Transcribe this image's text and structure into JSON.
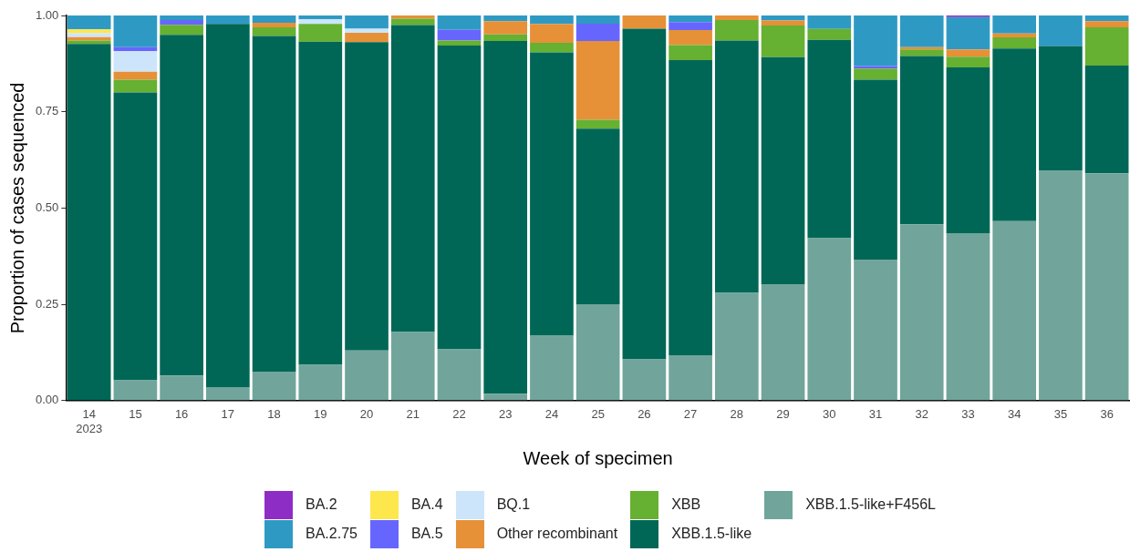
{
  "chart_data": {
    "type": "bar",
    "stacked": true,
    "xlabel": "Week of specimen",
    "ylabel": "Proportion of cases sequenced",
    "categories": [
      "14\n2023",
      "15",
      "16",
      "17",
      "18",
      "19",
      "20",
      "21",
      "22",
      "23",
      "24",
      "25",
      "26",
      "27",
      "28",
      "29",
      "30",
      "31",
      "32",
      "33",
      "34",
      "35",
      "36"
    ],
    "ylim": [
      0,
      1
    ],
    "yticks": [
      {
        "value": 0,
        "label": "0.00"
      },
      {
        "value": 0.25,
        "label": "0.25"
      },
      {
        "value": 0.5,
        "label": "0.50"
      },
      {
        "value": 0.75,
        "label": "0.75"
      },
      {
        "value": 1,
        "label": "1.00"
      }
    ],
    "grid": false,
    "legend": "bottom",
    "series": [
      {
        "name": "XBB.1.5-like+F456L",
        "color": "#71a59b",
        "values": [
          0,
          0.053,
          0.065,
          0.035,
          0.075,
          0.093,
          0.13,
          0.178,
          0.133,
          0.018,
          0.17,
          0.25,
          0.107,
          0.118,
          0.28,
          0.302,
          0.422,
          0.366,
          0.458,
          0.435,
          0.466,
          0.598,
          0.59
        ]
      },
      {
        "name": "XBB.1.5-like",
        "color": "#006756",
        "values": [
          0.926,
          0.747,
          0.885,
          0.943,
          0.872,
          0.839,
          0.801,
          0.797,
          0.789,
          0.916,
          0.734,
          0.456,
          0.859,
          0.766,
          0.655,
          0.59,
          0.515,
          0.467,
          0.437,
          0.43,
          0.448,
          0.323,
          0.28
        ]
      },
      {
        "name": "XBB",
        "color": "#66b032",
        "values": [
          0.009,
          0.033,
          0.026,
          0,
          0.022,
          0.046,
          0,
          0.017,
          0.013,
          0.017,
          0.025,
          0.023,
          0,
          0.039,
          0.053,
          0.082,
          0.028,
          0.029,
          0.017,
          0.028,
          0.029,
          0,
          0.099
        ]
      },
      {
        "name": "Other recombinant",
        "color": "#e69138",
        "values": [
          0.009,
          0.021,
          0,
          0,
          0.012,
          0,
          0.024,
          0.008,
          0,
          0.034,
          0.049,
          0.205,
          0.034,
          0.039,
          0.012,
          0.013,
          0,
          0,
          0.006,
          0.019,
          0.01,
          0,
          0.016
        ]
      },
      {
        "name": "BQ.1",
        "color": "#cce5fa",
        "values": [
          0.01,
          0.053,
          0,
          0,
          0,
          0.012,
          0.011,
          0,
          0,
          0,
          0,
          0,
          0,
          0,
          0,
          0,
          0,
          0,
          0,
          0,
          0,
          0,
          0
        ]
      },
      {
        "name": "BA.5",
        "color": "#6666ff",
        "values": [
          0,
          0.011,
          0.012,
          0,
          0,
          0,
          0,
          0,
          0.028,
          0,
          0,
          0.045,
          0,
          0.021,
          0,
          0,
          0,
          0.007,
          0,
          0,
          0,
          0,
          0
        ]
      },
      {
        "name": "BA.4",
        "color": "#fde74c",
        "values": [
          0.01,
          0,
          0,
          0,
          0,
          0,
          0,
          0,
          0,
          0,
          0,
          0,
          0,
          0,
          0,
          0,
          0,
          0,
          0,
          0,
          0,
          0,
          0
        ]
      },
      {
        "name": "BA.2.75",
        "color": "#2e9ac4",
        "values": [
          0.036,
          0.082,
          0.012,
          0.022,
          0.019,
          0.01,
          0.034,
          0,
          0.037,
          0.015,
          0.022,
          0.021,
          0,
          0.017,
          0,
          0.013,
          0.035,
          0.131,
          0.082,
          0.084,
          0.047,
          0.079,
          0.015
        ]
      },
      {
        "name": "BA.2",
        "color": "#8e2dc5",
        "values": [
          0,
          0,
          0,
          0,
          0,
          0,
          0,
          0,
          0,
          0,
          0,
          0,
          0,
          0,
          0,
          0,
          0,
          0,
          0,
          0.004,
          0,
          0,
          0
        ]
      }
    ]
  }
}
